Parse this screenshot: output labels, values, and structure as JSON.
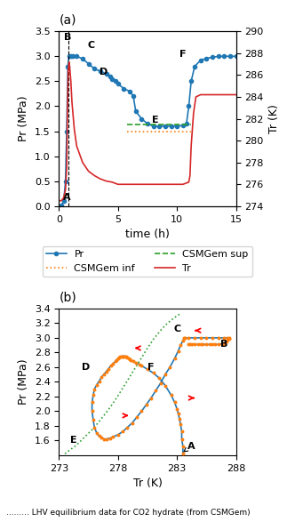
{
  "chart_data": [
    {
      "type": "line",
      "title": "(a)",
      "x_label": "time (h)",
      "y_label": "Pr (MPa)",
      "y2_label": "Tr (K)",
      "xlim": [
        0,
        15
      ],
      "xticks": [
        0,
        5,
        10,
        15
      ],
      "ylim": [
        0,
        3.5
      ],
      "yticks": [
        {
          "value": 0,
          "label": "0.0"
        },
        0.5,
        {
          "value": 1,
          "label": "1.0"
        },
        1.5,
        {
          "value": 2,
          "label": "2.0"
        },
        2.5,
        {
          "value": 3,
          "label": "3.0"
        },
        3.5
      ],
      "y2lim": [
        274,
        290
      ],
      "y2ticks": [
        274,
        276,
        278,
        280,
        282,
        284,
        286,
        288,
        290
      ],
      "legend": "center",
      "series": [
        {
          "name": "Pr",
          "type": "line",
          "marker": "circle",
          "line_style": "solid",
          "x": [
            0.0,
            0.2,
            0.4,
            0.55,
            0.65,
            0.75,
            0.85,
            1.0,
            1.2,
            1.5,
            2.0,
            2.5,
            3.0,
            3.5,
            4.0,
            4.3,
            4.5,
            4.8,
            5.0,
            5.5,
            6.0,
            6.3,
            6.5,
            7.0,
            7.5,
            8.0,
            8.5,
            9.0,
            9.5,
            10.0,
            10.5,
            10.8,
            11.0,
            11.2,
            11.5,
            12.0,
            12.5,
            13.0,
            13.5,
            14.0,
            14.5,
            15.0
          ],
          "values": [
            0.0,
            0.02,
            0.1,
            0.5,
            1.5,
            2.8,
            3.0,
            3.0,
            3.0,
            3.0,
            2.95,
            2.85,
            2.75,
            2.7,
            2.65,
            2.6,
            2.55,
            2.5,
            2.45,
            2.35,
            2.3,
            2.2,
            1.9,
            1.75,
            1.65,
            1.6,
            1.6,
            1.6,
            1.6,
            1.6,
            1.62,
            1.65,
            2.0,
            2.5,
            2.8,
            2.92,
            2.96,
            2.98,
            3.0,
            3.0,
            3.0,
            3.0
          ]
        },
        {
          "name": "CSMGem inf",
          "type": "line",
          "line_style": "dotted",
          "x": [
            5.8,
            6.0,
            6.5,
            7.0,
            7.5,
            8.0,
            8.5,
            9.0,
            9.5,
            10.0,
            10.5,
            11.0,
            11.2
          ],
          "values": [
            1.5,
            1.5,
            1.5,
            1.5,
            1.5,
            1.5,
            1.5,
            1.5,
            1.5,
            1.5,
            1.5,
            1.5,
            1.5
          ]
        },
        {
          "name": "CSMGem sup",
          "type": "line",
          "line_style": "dashed",
          "x": [
            5.8,
            6.0,
            6.5,
            7.0,
            7.5,
            8.0,
            8.5,
            9.0,
            9.5,
            10.0,
            10.5,
            11.0,
            11.2
          ],
          "values": [
            1.63,
            1.63,
            1.63,
            1.63,
            1.63,
            1.63,
            1.63,
            1.63,
            1.63,
            1.63,
            1.63,
            1.63,
            1.63
          ]
        },
        {
          "name": "Tr",
          "type": "line",
          "line_style": "solid",
          "axis": "y2",
          "x": [
            0.0,
            0.2,
            0.4,
            0.55,
            0.65,
            0.72,
            0.78,
            0.85,
            0.9,
            1.0,
            1.1,
            1.3,
            1.5,
            2.0,
            2.5,
            3.0,
            3.5,
            4.0,
            4.5,
            5.0,
            5.5,
            6.0,
            6.5,
            7.0,
            7.5,
            8.0,
            8.5,
            9.0,
            9.5,
            10.0,
            10.5,
            11.0,
            11.1,
            11.2,
            11.4,
            11.6,
            12.0,
            12.5,
            13.0,
            13.5,
            14.0,
            14.5,
            15.0
          ],
          "values": [
            274.5,
            274.5,
            274.8,
            275.5,
            277.5,
            283.0,
            286.5,
            287.2,
            286.8,
            285.5,
            283.5,
            281.0,
            279.5,
            278.0,
            277.2,
            276.8,
            276.5,
            276.3,
            276.2,
            276.0,
            276.0,
            276.0,
            276.0,
            276.0,
            276.0,
            276.0,
            276.0,
            276.0,
            276.0,
            276.0,
            276.0,
            276.2,
            276.8,
            279.5,
            282.5,
            284.0,
            284.2,
            284.2,
            284.2,
            284.2,
            284.2,
            284.2,
            284.2
          ]
        }
      ],
      "annotations": [
        {
          "text": "A",
          "x": 0.7,
          "y": 0.18
        },
        {
          "text": "B",
          "x": 0.75,
          "y": 3.38
        },
        {
          "text": "C",
          "x": 2.7,
          "y": 3.22
        },
        {
          "text": "D",
          "x": 3.8,
          "y": 2.68
        },
        {
          "text": "E",
          "x": 8.2,
          "y": 1.72
        },
        {
          "text": "F",
          "x": 10.5,
          "y": 3.05
        }
      ],
      "vlines": [
        {
          "x": 0.78,
          "line_style": "dashed",
          "color": "black"
        }
      ]
    },
    {
      "type": "line",
      "title": "(b)",
      "x_label": "Tr (K)",
      "y_label": "Pr (MPa)",
      "xlim": [
        273,
        288
      ],
      "xticks": [
        273,
        278,
        283,
        288
      ],
      "ylim": [
        1.4,
        3.4
      ],
      "yticks": [
        1.6,
        1.8,
        {
          "value": 2,
          "label": "2.0"
        },
        2.2,
        2.4,
        2.6,
        2.8,
        {
          "value": 3,
          "label": "3.0"
        },
        3.2,
        3.4
      ],
      "series": [
        {
          "type": "line",
          "line_style": "solid",
          "x": [
            283.5,
            283.5,
            283.4,
            283.4,
            283.3,
            283.2,
            283.1,
            283.0,
            282.8,
            282.5,
            282.0,
            281.5,
            281.0,
            280.5,
            280.0,
            279.8,
            279.5,
            279.3,
            279.1,
            279.0,
            278.9,
            278.8,
            278.7,
            278.6,
            278.5,
            278.4,
            278.3,
            278.2,
            278.1,
            278.0,
            277.9,
            277.8,
            277.6,
            277.4,
            277.2,
            277.0,
            276.8,
            276.6,
            276.4,
            276.2,
            276.0,
            275.9,
            275.8,
            275.8,
            275.9,
            276.0,
            276.2,
            276.4,
            276.6,
            276.8,
            277.0,
            277.3,
            277.6,
            278.0,
            278.4,
            278.8,
            279.2,
            279.6,
            280.0,
            280.4,
            280.8,
            281.2,
            281.6,
            282.0,
            282.4,
            282.8,
            283.1,
            283.3,
            283.5,
            283.6,
            283.7,
            284.0,
            284.5,
            285.0,
            285.5,
            286.0,
            286.5,
            287.0,
            287.3,
            287.4,
            287.4,
            287.3,
            287.2,
            287.0,
            286.8,
            286.5,
            286.2,
            286.0,
            285.8,
            285.5,
            285.2,
            285.0,
            284.8,
            284.5,
            284.3,
            284.1,
            284.0
          ],
          "values": [
            1.42,
            1.52,
            1.62,
            1.72,
            1.82,
            1.9,
            1.97,
            2.03,
            2.12,
            2.22,
            2.35,
            2.45,
            2.52,
            2.57,
            2.62,
            2.64,
            2.66,
            2.68,
            2.7,
            2.71,
            2.72,
            2.73,
            2.74,
            2.75,
            2.75,
            2.75,
            2.75,
            2.74,
            2.73,
            2.72,
            2.7,
            2.68,
            2.65,
            2.62,
            2.58,
            2.54,
            2.5,
            2.46,
            2.41,
            2.36,
            2.3,
            2.22,
            2.12,
            2.0,
            1.88,
            1.78,
            1.7,
            1.66,
            1.64,
            1.62,
            1.62,
            1.63,
            1.65,
            1.68,
            1.72,
            1.78,
            1.84,
            1.92,
            2.0,
            2.09,
            2.18,
            2.28,
            2.38,
            2.5,
            2.6,
            2.72,
            2.82,
            2.9,
            2.96,
            3.0,
            3.0,
            3.0,
            3.0,
            3.0,
            3.0,
            3.0,
            3.0,
            3.0,
            3.0,
            3.0,
            2.99,
            2.97,
            2.95,
            2.93,
            2.92,
            2.91,
            2.91,
            2.91,
            2.91,
            2.91,
            2.91,
            2.91,
            2.91,
            2.91,
            2.91,
            2.91,
            2.91
          ]
        },
        {
          "type": "scatter",
          "x": [
            283.5,
            283.5,
            283.4,
            283.4,
            283.3,
            283.2,
            283.1,
            283.0,
            282.8,
            282.5,
            282.0,
            281.5,
            281.0,
            280.5,
            280.0,
            279.8,
            279.5,
            279.3,
            279.1,
            279.0,
            278.9,
            278.8,
            278.7,
            278.6,
            278.5,
            278.4,
            278.3,
            278.2,
            278.1,
            278.0,
            277.9,
            277.8,
            277.6,
            277.4,
            277.2,
            277.0,
            276.8,
            276.6,
            276.4,
            276.2,
            276.0,
            275.9,
            275.8,
            275.8,
            275.9,
            276.0,
            276.2,
            276.4,
            276.6,
            276.8,
            277.0,
            277.3,
            277.6,
            278.0,
            278.4,
            278.8,
            279.2,
            279.6,
            280.0,
            280.4,
            280.8,
            281.2,
            281.6,
            282.0,
            282.4,
            282.8,
            283.1,
            283.3,
            283.5,
            283.6,
            283.7,
            284.0,
            284.5,
            285.0,
            285.5,
            286.0,
            286.5,
            287.0,
            287.3,
            287.4,
            287.4,
            287.3,
            287.2,
            287.0,
            286.8,
            286.5,
            286.2,
            286.0,
            285.8,
            285.5,
            285.2,
            285.0,
            284.8,
            284.5,
            284.3,
            284.1,
            284.0
          ],
          "values": [
            1.42,
            1.52,
            1.62,
            1.72,
            1.82,
            1.9,
            1.97,
            2.03,
            2.12,
            2.22,
            2.35,
            2.45,
            2.52,
            2.57,
            2.62,
            2.64,
            2.66,
            2.68,
            2.7,
            2.71,
            2.72,
            2.73,
            2.74,
            2.75,
            2.75,
            2.75,
            2.75,
            2.74,
            2.73,
            2.72,
            2.7,
            2.68,
            2.65,
            2.62,
            2.58,
            2.54,
            2.5,
            2.46,
            2.41,
            2.36,
            2.3,
            2.22,
            2.12,
            2.0,
            1.88,
            1.78,
            1.7,
            1.66,
            1.64,
            1.62,
            1.62,
            1.63,
            1.65,
            1.68,
            1.72,
            1.78,
            1.84,
            1.92,
            2.0,
            2.09,
            2.18,
            2.28,
            2.38,
            2.5,
            2.6,
            2.72,
            2.82,
            2.9,
            2.96,
            3.0,
            3.0,
            3.0,
            3.0,
            3.0,
            3.0,
            3.0,
            3.0,
            3.0,
            3.0,
            3.0,
            2.99,
            2.97,
            2.95,
            2.93,
            2.92,
            2.91,
            2.91,
            2.91,
            2.91,
            2.91,
            2.91,
            2.91,
            2.91,
            2.91,
            2.91,
            2.91,
            2.91
          ]
        },
        {
          "type": "line",
          "line_style": "dotted",
          "x": [
            273.5,
            274.0,
            274.5,
            275.0,
            275.5,
            276.0,
            276.5,
            277.0,
            277.5,
            278.0,
            278.5,
            279.0,
            279.5,
            280.0,
            280.5,
            281.0,
            281.5,
            282.0,
            282.5,
            283.0,
            283.3
          ],
          "values": [
            1.42,
            1.48,
            1.54,
            1.62,
            1.7,
            1.78,
            1.88,
            1.98,
            2.09,
            2.21,
            2.34,
            2.47,
            2.6,
            2.73,
            2.86,
            2.98,
            3.08,
            3.17,
            3.24,
            3.3,
            3.33
          ]
        }
      ],
      "annotations": [
        {
          "text": "A",
          "x": 284.2,
          "y": 1.52,
          "arrow_to": [
            283.5,
            1.44
          ],
          "line_style": "dashed"
        },
        {
          "text": "B",
          "x": 287.0,
          "y": 2.91
        },
        {
          "text": "C",
          "x": 283.0,
          "y": 3.12
        },
        {
          "text": "D",
          "x": 275.3,
          "y": 2.6
        },
        {
          "text": "E",
          "x": 274.2,
          "y": 1.6
        },
        {
          "text": "F",
          "x": 280.8,
          "y": 2.6
        }
      ],
      "arrows": [
        {
          "from": [
            279.8,
            2.86
          ],
          "to": [
            279.2,
            2.86
          ],
          "color": "red"
        },
        {
          "from": [
            284.8,
            3.1
          ],
          "to": [
            284.3,
            3.1
          ],
          "color": "red"
        },
        {
          "from": [
            278.5,
            1.94
          ],
          "to": [
            278.9,
            1.94
          ],
          "color": "red"
        },
        {
          "from": [
            284.2,
            2.18
          ],
          "to": [
            284.7,
            2.18
          ],
          "color": "red"
        }
      ],
      "footnote": "......... LHV equilibrium data for CO2 hydrate (from CSMGem)"
    }
  ]
}
